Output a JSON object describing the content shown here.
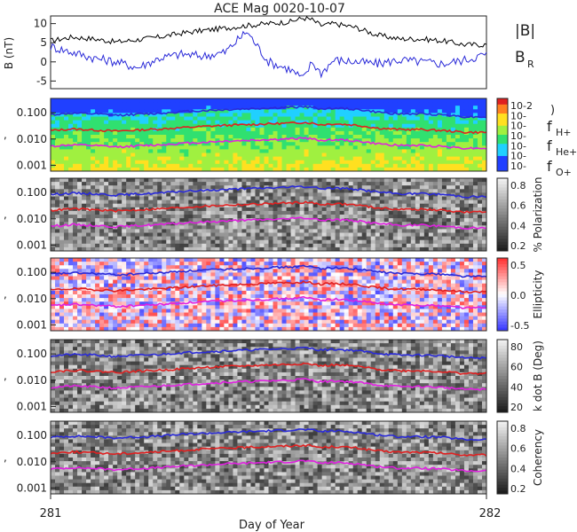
{
  "title": "ACE Mag 0020-10-07",
  "xlabel": "Day of Year",
  "x_ticks": [
    "281",
    "282"
  ],
  "chart_data": [
    {
      "type": "line",
      "panel": "magnetic-field",
      "ylabel": "B (nT)",
      "ylim": [
        -7,
        12
      ],
      "y_ticks": [
        "10",
        "5",
        "0",
        "-5"
      ],
      "legend": [
        {
          "label": "|B|",
          "color": "#000000"
        },
        {
          "label": "B",
          "sub": "R",
          "color": "#2a2ad8"
        }
      ],
      "x": [
        281.0,
        281.05,
        281.1,
        281.15,
        281.2,
        281.25,
        281.3,
        281.35,
        281.4,
        281.45,
        281.5,
        281.55,
        281.58,
        281.6,
        281.62,
        281.65,
        281.7,
        281.75,
        281.8,
        281.85,
        281.9,
        281.95,
        282.0
      ],
      "series": [
        {
          "color": "#000000",
          "values": [
            5.5,
            6.5,
            6.0,
            5.2,
            5.8,
            6.5,
            7.5,
            8.2,
            8.8,
            9.5,
            10.0,
            10.5,
            11.5,
            11.0,
            9.5,
            10.0,
            9.0,
            7.0,
            6.0,
            6.0,
            5.5,
            4.5,
            4.5
          ]
        },
        {
          "color": "#2a2ad8",
          "values": [
            4.0,
            2.5,
            1.0,
            0.0,
            -1.5,
            1.0,
            2.0,
            1.5,
            2.5,
            8.0,
            0.0,
            -2.0,
            -4.5,
            0.0,
            -3.0,
            0.5,
            0.0,
            -0.5,
            0.5,
            0.0,
            -0.5,
            0.5,
            2.0
          ]
        }
      ]
    },
    {
      "type": "heatmap",
      "panel": "power",
      "y_ticks": [
        "0.100",
        "0.010",
        "0.001"
      ],
      "ylim": [
        0.0006,
        0.35
      ],
      "colorbar_label": ")",
      "colorbar_ticks": [
        "10-2",
        "10-",
        "10-",
        "10-",
        "10-",
        "10-",
        "10-"
      ],
      "legend": [
        {
          "label": "f",
          "sub": "H+",
          "color": "#2a2ad8"
        },
        {
          "label": "f",
          "sub": "He+",
          "color": "#e02020"
        },
        {
          "label": "f",
          "sub": "O+",
          "color": "#e020e0"
        }
      ]
    },
    {
      "type": "heatmap",
      "panel": "polarization",
      "y_ticks": [
        "0.100",
        "0.010",
        "0.001"
      ],
      "ylim": [
        0.0006,
        0.35
      ],
      "colorbar_label": "% Polarization",
      "colorbar_ticks": [
        "0.8",
        "0.6",
        "0.4",
        "0.2"
      ]
    },
    {
      "type": "heatmap",
      "panel": "ellipticity",
      "y_ticks": [
        "0.100",
        "0.010",
        "0.001"
      ],
      "ylim": [
        0.0006,
        0.35
      ],
      "colorbar_label": "Ellipticity",
      "colorbar_ticks": [
        "0.5",
        "0.0",
        "-0.5"
      ]
    },
    {
      "type": "heatmap",
      "panel": "k-dot-b",
      "y_ticks": [
        "0.100",
        "0.010",
        "0.001"
      ],
      "ylim": [
        0.0006,
        0.35
      ],
      "colorbar_label": "k dot B (Deg)",
      "colorbar_ticks": [
        "80",
        "60",
        "40",
        "20"
      ]
    },
    {
      "type": "heatmap",
      "panel": "coherency",
      "y_ticks": [
        "0.100",
        "0.010",
        "0.001"
      ],
      "ylim": [
        0.0006,
        0.35
      ],
      "colorbar_label": "Coherency",
      "colorbar_ticks": [
        "0.8",
        "0.6",
        "0.4",
        "0.2"
      ]
    }
  ],
  "ion_gyrofrequency_lines": {
    "x": [
      281.0,
      281.05,
      281.1,
      281.15,
      281.2,
      281.25,
      281.3,
      281.35,
      281.4,
      281.45,
      281.5,
      281.55,
      281.58,
      281.6,
      281.62,
      281.65,
      281.7,
      281.75,
      281.8,
      281.85,
      281.9,
      281.95,
      282.0
    ],
    "fH": [
      0.085,
      0.095,
      0.09,
      0.08,
      0.088,
      0.095,
      0.11,
      0.12,
      0.13,
      0.14,
      0.15,
      0.16,
      0.17,
      0.16,
      0.14,
      0.15,
      0.135,
      0.105,
      0.09,
      0.09,
      0.085,
      0.07,
      0.07
    ],
    "fHe": [
      0.021,
      0.024,
      0.022,
      0.02,
      0.022,
      0.024,
      0.027,
      0.03,
      0.033,
      0.035,
      0.038,
      0.04,
      0.043,
      0.04,
      0.035,
      0.038,
      0.034,
      0.026,
      0.023,
      0.023,
      0.021,
      0.018,
      0.018
    ],
    "fO": [
      0.0053,
      0.006,
      0.0056,
      0.005,
      0.0055,
      0.006,
      0.0068,
      0.0075,
      0.0083,
      0.0088,
      0.0095,
      0.01,
      0.011,
      0.01,
      0.0088,
      0.0095,
      0.0085,
      0.0066,
      0.0057,
      0.0057,
      0.0053,
      0.0045,
      0.0045
    ]
  },
  "y_axis_stub": ",",
  "colors": {
    "axis": "#222222",
    "fH": "#2a2ad8",
    "fHe": "#e02020",
    "fO": "#e020e0"
  }
}
